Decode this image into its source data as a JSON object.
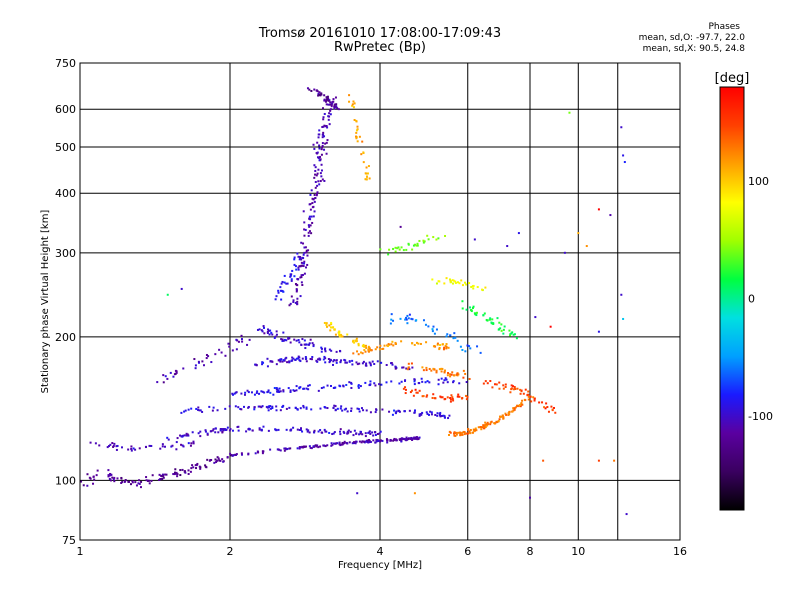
{
  "header": {
    "title_line1": "Tromsø 20161010 17:08:00-17:09:43",
    "title_line2": "RwPretec (Bp)",
    "phase_title": "Phases",
    "phase_o": "mean, sd,O: -97.7, 22.0",
    "phase_x": "mean, sd,X:  90.5, 24.8"
  },
  "chart_data": {
    "type": "scatter",
    "title": "Tromsø 20161010 17:08:00-17:09:43",
    "subtitle": "RwPretec (Bp)",
    "xlabel": "Frequency [MHz]",
    "ylabel": "Stationary phase Virtual Height [km]",
    "x_scale": "log",
    "y_scale": "log",
    "xlim": [
      1,
      16
    ],
    "ylim": [
      75,
      750
    ],
    "x_ticks": [
      1,
      2,
      4,
      6,
      8,
      10,
      16
    ],
    "x_tick_labels": [
      "1",
      "2",
      "4",
      "6",
      "8",
      "10",
      "16"
    ],
    "y_ticks": [
      75,
      100,
      200,
      300,
      400,
      500,
      600,
      750
    ],
    "y_tick_labels": [
      "75",
      "100",
      "200",
      "300",
      "400",
      "500",
      "600",
      "750"
    ],
    "x_gridlines": [
      2,
      4,
      6,
      8,
      10,
      12
    ],
    "y_gridlines": [
      100,
      200,
      300,
      400,
      500,
      600
    ],
    "grid": true,
    "colorbar": {
      "label": "[deg]",
      "range": [
        -180,
        180
      ],
      "ticks": [
        100,
        0,
        -100
      ],
      "tick_labels": [
        "100",
        "0",
        "-100"
      ],
      "colors": [
        "#000000",
        "#3a0060",
        "#5a00a0",
        "#1a1aff",
        "#00a0ff",
        "#00e0e0",
        "#00ff40",
        "#a0ff00",
        "#ffff00",
        "#ffa000",
        "#ff4000",
        "#ff0000"
      ]
    },
    "series": [
      {
        "traces": [
          {
            "f": [
              1.0,
              1.1,
              1.2,
              1.3,
              1.45,
              1.6,
              1.8,
              2.0
            ],
            "h": [
              97,
              104,
              100,
              98,
              102,
              104,
              108,
              112
            ],
            "phase": -120,
            "n": 120,
            "spread": 0.03
          },
          {
            "f": [
              1.1,
              1.2,
              1.3,
              1.5,
              1.7
            ],
            "h": [
              120,
              117,
              116,
              118,
              120
            ],
            "phase": -105,
            "n": 40,
            "spread": 0.025
          },
          {
            "f": [
              2.0,
              2.5,
              3.0,
              3.5,
              4.0,
              4.5,
              4.8
            ],
            "h": [
              113,
              116,
              118,
              120,
              121,
              122,
              123
            ],
            "phase": -110,
            "n": 180,
            "spread": 0.012
          },
          {
            "f": [
              1.5,
              1.8,
              2.0,
              2.5,
              3.0,
              3.5,
              4.0
            ],
            "h": [
              123,
              126,
              128,
              128,
              127,
              126,
              125
            ],
            "phase": -100,
            "n": 130,
            "spread": 0.02
          },
          {
            "f": [
              1.6,
              2.0,
              2.5,
              3.0,
              3.5,
              4.0,
              5.0,
              5.5
            ],
            "h": [
              140,
              142,
              142,
              142,
              141,
              140,
              138,
              136
            ],
            "phase": -95,
            "n": 130,
            "spread": 0.02
          },
          {
            "f": [
              2.0,
              2.3,
              2.6,
              3.0,
              3.5,
              4.0,
              5.0,
              6.0
            ],
            "h": [
              152,
              153,
              155,
              157,
              158,
              160,
              162,
              160
            ],
            "phase": -90,
            "n": 110,
            "spread": 0.025
          },
          {
            "f": [
              2.2,
              2.5,
              2.8,
              3.2,
              3.6,
              4.0,
              4.6
            ],
            "h": [
              175,
              178,
              180,
              178,
              176,
              175,
              172
            ],
            "phase": -100,
            "n": 110,
            "spread": 0.025
          },
          {
            "f": [
              2.3,
              2.5,
              2.8,
              3.0,
              3.3
            ],
            "h": [
              210,
              200,
              195,
              190,
              185
            ],
            "phase": -100,
            "n": 60,
            "spread": 0.03
          },
          {
            "f": [
              2.7,
              2.8,
              2.9,
              3.0,
              3.05,
              3.1,
              3.2
            ],
            "h": [
              230,
              290,
              360,
              430,
              500,
              560,
              630
            ],
            "phase": -110,
            "n": 170,
            "spread": 0.03
          },
          {
            "f": [
              2.5,
              2.6,
              2.7,
              2.8
            ],
            "h": [
              240,
              260,
              280,
              300
            ],
            "phase": -90,
            "n": 40,
            "spread": 0.03
          },
          {
            "f": [
              2.9,
              3.0,
              3.1,
              3.2,
              3.3
            ],
            "h": [
              660,
              650,
              635,
              620,
              600
            ],
            "phase": -120,
            "n": 40,
            "spread": 0.02
          },
          {
            "f": [
              3.1,
              3.2,
              3.4,
              3.6,
              3.8
            ],
            "h": [
              215,
              208,
              200,
              195,
              190
            ],
            "phase": 100,
            "n": 40,
            "spread": 0.02
          },
          {
            "f": [
              3.5,
              3.6,
              3.7,
              3.8
            ],
            "h": [
              650,
              550,
              470,
              420
            ],
            "phase": 110,
            "n": 35,
            "spread": 0.02
          },
          {
            "f": [
              3.6,
              4.0,
              4.5,
              5.0,
              5.5
            ],
            "h": [
              185,
              190,
              195,
              193,
              190
            ],
            "phase": 120,
            "n": 60,
            "spread": 0.02
          },
          {
            "f": [
              4.5,
              5.0,
              5.5,
              6.0
            ],
            "h": [
              175,
              170,
              168,
              165
            ],
            "phase": 130,
            "n": 40,
            "spread": 0.025
          },
          {
            "f": [
              4.5,
              4.8,
              5.0,
              5.5,
              6.0
            ],
            "h": [
              155,
              152,
              150,
              148,
              150
            ],
            "phase": 150,
            "n": 40,
            "spread": 0.025
          },
          {
            "f": [
              5.5,
              6.0,
              6.5,
              7.0,
              7.5
            ],
            "h": [
              240,
              230,
              220,
              210,
              200
            ],
            "phase": 20,
            "n": 45,
            "spread": 0.03
          },
          {
            "f": [
              5.0,
              5.5,
              6.0,
              6.5
            ],
            "h": [
              260,
              262,
              258,
              250
            ],
            "phase": 80,
            "n": 30,
            "spread": 0.02
          },
          {
            "f": [
              5.5,
              6.0,
              6.5,
              7.0,
              7.5,
              8.0
            ],
            "h": [
              125,
              126,
              130,
              135,
              142,
              150
            ],
            "phase": 130,
            "n": 110,
            "spread": 0.02
          },
          {
            "f": [
              6.5,
              7.0,
              7.5,
              8.0,
              8.5,
              9.0
            ],
            "h": [
              160,
              158,
              155,
              150,
              145,
              140
            ],
            "phase": 150,
            "n": 50,
            "spread": 0.03
          },
          {
            "f": [
              4.0,
              4.5,
              5.0,
              5.5
            ],
            "h": [
              300,
              310,
              320,
              325
            ],
            "phase": 40,
            "n": 30,
            "spread": 0.03
          },
          {
            "f": [
              4.2,
              4.8,
              5.5,
              6.0,
              6.5
            ],
            "h": [
              220,
              215,
              200,
              190,
              185
            ],
            "phase": -60,
            "n": 40,
            "spread": 0.04
          },
          {
            "f": [
              1.4,
              1.6,
              1.8,
              2.0,
              2.2
            ],
            "h": [
              160,
              170,
              180,
              190,
              200
            ],
            "phase": -110,
            "n": 40,
            "spread": 0.04
          }
        ],
        "scatter_points": [
          {
            "f": 12.2,
            "h": 550,
            "phase": -100
          },
          {
            "f": 12.3,
            "h": 480,
            "phase": -90
          },
          {
            "f": 12.4,
            "h": 465,
            "phase": -80
          },
          {
            "f": 12.2,
            "h": 245,
            "phase": -100
          },
          {
            "f": 12.3,
            "h": 218,
            "phase": -30
          },
          {
            "f": 12.5,
            "h": 85,
            "phase": -100
          },
          {
            "f": 11.0,
            "h": 370,
            "phase": 180
          },
          {
            "f": 11.6,
            "h": 360,
            "phase": -110
          },
          {
            "f": 11.0,
            "h": 205,
            "phase": -90
          },
          {
            "f": 9.4,
            "h": 300,
            "phase": -100
          },
          {
            "f": 9.6,
            "h": 590,
            "phase": 40
          },
          {
            "f": 10.0,
            "h": 330,
            "phase": 110
          },
          {
            "f": 10.4,
            "h": 310,
            "phase": 120
          },
          {
            "f": 11.8,
            "h": 110,
            "phase": 130
          },
          {
            "f": 11.0,
            "h": 110,
            "phase": 150
          },
          {
            "f": 8.0,
            "h": 92,
            "phase": -110
          },
          {
            "f": 8.5,
            "h": 110,
            "phase": 140
          },
          {
            "f": 4.7,
            "h": 94,
            "phase": 120
          },
          {
            "f": 3.6,
            "h": 94,
            "phase": -100
          },
          {
            "f": 7.6,
            "h": 330,
            "phase": -90
          },
          {
            "f": 8.2,
            "h": 220,
            "phase": -100
          },
          {
            "f": 8.8,
            "h": 210,
            "phase": 180
          },
          {
            "f": 6.2,
            "h": 320,
            "phase": -100
          },
          {
            "f": 1.5,
            "h": 245,
            "phase": 10
          },
          {
            "f": 1.6,
            "h": 252,
            "phase": -100
          },
          {
            "f": 4.4,
            "h": 340,
            "phase": -120
          },
          {
            "f": 7.2,
            "h": 310,
            "phase": -100
          },
          {
            "f": 1.0,
            "h": 110,
            "phase": -100
          },
          {
            "f": 1.05,
            "h": 120,
            "phase": -110
          }
        ]
      }
    ]
  }
}
